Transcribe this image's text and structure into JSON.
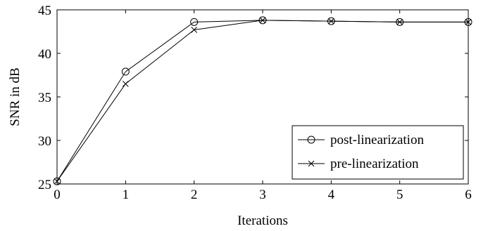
{
  "chart_data": {
    "type": "line",
    "xlabel": "Iterations",
    "ylabel": "SNR in dB",
    "xlim": [
      0,
      6
    ],
    "ylim": [
      25,
      45
    ],
    "xticks": [
      0,
      1,
      2,
      3,
      4,
      5,
      6
    ],
    "yticks": [
      25,
      30,
      35,
      40,
      45
    ],
    "grid": false,
    "legend_position": "bottom-right",
    "series": [
      {
        "name": "post-linearization",
        "marker": "circle",
        "color": "#000000",
        "x": [
          0,
          1,
          2,
          3,
          4,
          5,
          6
        ],
        "y": [
          25.3,
          37.9,
          43.6,
          43.8,
          43.7,
          43.6,
          43.6
        ]
      },
      {
        "name": "pre-linearization",
        "marker": "cross",
        "color": "#000000",
        "x": [
          0,
          1,
          2,
          3,
          4,
          5,
          6
        ],
        "y": [
          25.3,
          36.5,
          42.7,
          43.8,
          43.7,
          43.6,
          43.6
        ]
      }
    ]
  }
}
